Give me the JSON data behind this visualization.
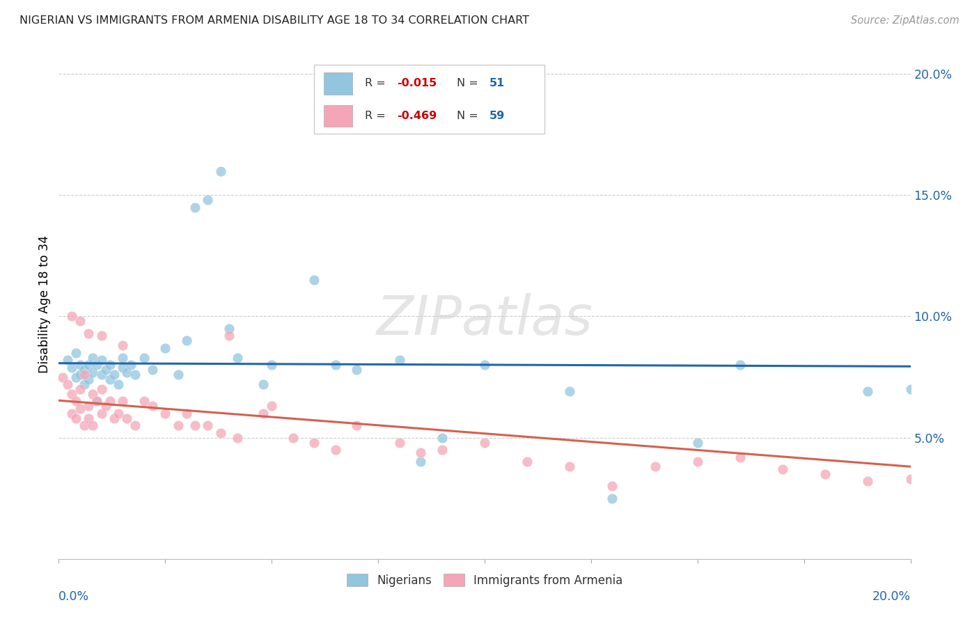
{
  "title": "NIGERIAN VS IMMIGRANTS FROM ARMENIA DISABILITY AGE 18 TO 34 CORRELATION CHART",
  "source": "Source: ZipAtlas.com",
  "ylabel": "Disability Age 18 to 34",
  "xlim": [
    0.0,
    0.2
  ],
  "ylim": [
    0.0,
    0.21
  ],
  "ytick_vals": [
    0.05,
    0.1,
    0.15,
    0.2
  ],
  "ytick_labels": [
    "5.0%",
    "10.0%",
    "15.0%",
    "20.0%"
  ],
  "blue_color": "#92c5de",
  "pink_color": "#f4a6b8",
  "line_blue": "#2166ac",
  "line_pink": "#d6604d",
  "background_color": "#ffffff",
  "R_blue": -0.015,
  "N_blue": 51,
  "R_pink": -0.469,
  "N_pink": 59,
  "blue_x": [
    0.002,
    0.003,
    0.004,
    0.004,
    0.005,
    0.005,
    0.006,
    0.006,
    0.007,
    0.007,
    0.008,
    0.008,
    0.009,
    0.009,
    0.01,
    0.01,
    0.011,
    0.012,
    0.012,
    0.013,
    0.014,
    0.015,
    0.015,
    0.016,
    0.017,
    0.018,
    0.02,
    0.022,
    0.025,
    0.028,
    0.03,
    0.032,
    0.035,
    0.038,
    0.04,
    0.042,
    0.048,
    0.05,
    0.06,
    0.065,
    0.07,
    0.08,
    0.085,
    0.09,
    0.1,
    0.12,
    0.13,
    0.15,
    0.16,
    0.19,
    0.2
  ],
  "blue_y": [
    0.082,
    0.079,
    0.075,
    0.085,
    0.08,
    0.076,
    0.078,
    0.072,
    0.08,
    0.074,
    0.077,
    0.083,
    0.065,
    0.08,
    0.076,
    0.082,
    0.078,
    0.074,
    0.08,
    0.076,
    0.072,
    0.079,
    0.083,
    0.077,
    0.08,
    0.076,
    0.083,
    0.078,
    0.087,
    0.076,
    0.09,
    0.145,
    0.148,
    0.16,
    0.095,
    0.083,
    0.072,
    0.08,
    0.115,
    0.08,
    0.078,
    0.082,
    0.04,
    0.05,
    0.08,
    0.069,
    0.025,
    0.048,
    0.08,
    0.069,
    0.07
  ],
  "pink_x": [
    0.001,
    0.002,
    0.003,
    0.003,
    0.004,
    0.004,
    0.005,
    0.005,
    0.006,
    0.006,
    0.007,
    0.007,
    0.008,
    0.008,
    0.009,
    0.01,
    0.01,
    0.011,
    0.012,
    0.013,
    0.014,
    0.015,
    0.016,
    0.018,
    0.02,
    0.022,
    0.025,
    0.028,
    0.03,
    0.032,
    0.035,
    0.038,
    0.04,
    0.042,
    0.048,
    0.05,
    0.055,
    0.06,
    0.065,
    0.07,
    0.08,
    0.085,
    0.09,
    0.1,
    0.11,
    0.12,
    0.13,
    0.14,
    0.15,
    0.16,
    0.17,
    0.18,
    0.19,
    0.2,
    0.003,
    0.005,
    0.007,
    0.01,
    0.015
  ],
  "pink_y": [
    0.075,
    0.072,
    0.068,
    0.06,
    0.065,
    0.058,
    0.07,
    0.062,
    0.076,
    0.055,
    0.063,
    0.058,
    0.068,
    0.055,
    0.065,
    0.07,
    0.06,
    0.063,
    0.065,
    0.058,
    0.06,
    0.065,
    0.058,
    0.055,
    0.065,
    0.063,
    0.06,
    0.055,
    0.06,
    0.055,
    0.055,
    0.052,
    0.092,
    0.05,
    0.06,
    0.063,
    0.05,
    0.048,
    0.045,
    0.055,
    0.048,
    0.044,
    0.045,
    0.048,
    0.04,
    0.038,
    0.03,
    0.038,
    0.04,
    0.042,
    0.037,
    0.035,
    0.032,
    0.033,
    0.1,
    0.098,
    0.093,
    0.092,
    0.088
  ]
}
